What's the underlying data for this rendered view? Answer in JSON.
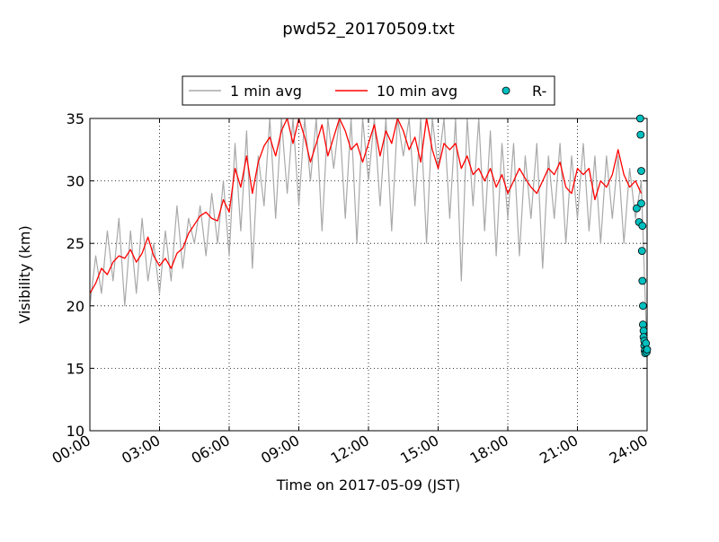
{
  "chart_data": {
    "type": "line",
    "title": "pwd52_20170509.txt",
    "xlabel": "Time on 2017-05-09 (JST)",
    "ylabel": "Visibility (km)",
    "xlim": [
      "00:00",
      "24:00"
    ],
    "ylim": [
      10,
      35
    ],
    "x_ticks": [
      "00:00",
      "03:00",
      "06:00",
      "09:00",
      "12:00",
      "15:00",
      "18:00",
      "21:00",
      "24:00"
    ],
    "y_ticks": [
      "10",
      "15",
      "20",
      "25",
      "30",
      "35"
    ],
    "grid": true,
    "legend_position": "top-center",
    "series": [
      {
        "name": "1 min avg",
        "color": "#a9a9a9",
        "style": "line",
        "x_hours": [
          0.0,
          0.25,
          0.5,
          0.75,
          1.0,
          1.25,
          1.5,
          1.75,
          2.0,
          2.25,
          2.5,
          2.75,
          3.0,
          3.25,
          3.5,
          3.75,
          4.0,
          4.25,
          4.5,
          4.75,
          5.0,
          5.25,
          5.5,
          5.75,
          6.0,
          6.25,
          6.5,
          6.75,
          7.0,
          7.25,
          7.5,
          7.75,
          8.0,
          8.25,
          8.5,
          8.75,
          9.0,
          9.25,
          9.5,
          9.75,
          10.0,
          10.25,
          10.5,
          10.75,
          11.0,
          11.25,
          11.5,
          11.75,
          12.0,
          12.25,
          12.5,
          12.75,
          13.0,
          13.25,
          13.5,
          13.75,
          14.0,
          14.25,
          14.5,
          14.75,
          15.0,
          15.25,
          15.5,
          15.75,
          16.0,
          16.25,
          16.5,
          16.75,
          17.0,
          17.25,
          17.5,
          17.75,
          18.0,
          18.25,
          18.5,
          18.75,
          19.0,
          19.25,
          19.5,
          19.75,
          20.0,
          20.25,
          20.5,
          20.75,
          21.0,
          21.25,
          21.5,
          21.75,
          22.0,
          22.25,
          22.5,
          22.75,
          23.0,
          23.25,
          23.5,
          23.75,
          24.0
        ],
        "values": [
          20,
          24,
          21,
          26,
          22,
          27,
          20,
          26,
          21,
          27,
          22,
          25,
          21,
          26,
          22,
          28,
          23,
          27,
          25,
          28,
          24,
          29,
          25,
          30,
          24,
          33,
          26,
          34,
          23,
          32,
          28,
          35,
          27,
          35,
          29,
          35,
          28,
          35,
          30,
          35,
          26,
          35,
          31,
          35,
          27,
          35,
          25,
          35,
          30,
          35,
          28,
          35,
          26,
          35,
          32,
          35,
          28,
          35,
          25,
          35,
          31,
          35,
          27,
          35,
          22,
          35,
          28,
          35,
          26,
          34,
          24,
          33,
          27,
          33,
          24,
          32,
          27,
          33,
          23,
          32,
          27,
          33,
          25,
          32,
          27,
          33,
          26,
          32,
          25,
          32,
          27,
          32,
          25,
          31,
          27,
          30,
          16
        ]
      },
      {
        "name": "10 min avg",
        "color": "#ff0000",
        "style": "line",
        "x_hours": [
          0.0,
          0.25,
          0.5,
          0.75,
          1.0,
          1.25,
          1.5,
          1.75,
          2.0,
          2.25,
          2.5,
          2.75,
          3.0,
          3.25,
          3.5,
          3.75,
          4.0,
          4.25,
          4.5,
          4.75,
          5.0,
          5.25,
          5.5,
          5.75,
          6.0,
          6.25,
          6.5,
          6.75,
          7.0,
          7.25,
          7.5,
          7.75,
          8.0,
          8.25,
          8.5,
          8.75,
          9.0,
          9.25,
          9.5,
          9.75,
          10.0,
          10.25,
          10.5,
          10.75,
          11.0,
          11.25,
          11.5,
          11.75,
          12.0,
          12.25,
          12.5,
          12.75,
          13.0,
          13.25,
          13.5,
          13.75,
          14.0,
          14.25,
          14.5,
          14.75,
          15.0,
          15.25,
          15.5,
          15.75,
          16.0,
          16.25,
          16.5,
          16.75,
          17.0,
          17.25,
          17.5,
          17.75,
          18.0,
          18.25,
          18.5,
          18.75,
          19.0,
          19.25,
          19.5,
          19.75,
          20.0,
          20.25,
          20.5,
          20.75,
          21.0,
          21.25,
          21.5,
          21.75,
          22.0,
          22.25,
          22.5,
          22.75,
          23.0,
          23.25,
          23.5,
          23.75
        ],
        "values": [
          21.0,
          21.8,
          23.0,
          22.5,
          23.5,
          24.0,
          23.8,
          24.5,
          23.5,
          24.2,
          25.5,
          24.0,
          23.2,
          23.8,
          23.0,
          24.2,
          24.6,
          25.8,
          26.5,
          27.2,
          27.5,
          27.0,
          26.8,
          28.5,
          27.5,
          31.0,
          29.5,
          32.0,
          29.0,
          31.5,
          32.8,
          33.5,
          32.0,
          34.0,
          35.0,
          33.0,
          35.0,
          33.5,
          31.5,
          33.0,
          34.5,
          32.0,
          33.5,
          35.0,
          34.0,
          32.5,
          33.0,
          31.5,
          33.0,
          34.5,
          32.0,
          34.0,
          33.0,
          35.0,
          34.0,
          32.5,
          33.5,
          31.5,
          35.0,
          32.5,
          31.0,
          33.0,
          32.5,
          33.0,
          31.0,
          32.0,
          30.5,
          31.0,
          30.0,
          31.0,
          29.5,
          30.5,
          29.0,
          30.0,
          31.0,
          30.2,
          29.5,
          29.0,
          30.0,
          31.0,
          30.5,
          31.5,
          29.5,
          29.0,
          31.0,
          30.5,
          31.0,
          28.5,
          30.0,
          29.5,
          30.5,
          32.5,
          30.5,
          29.5,
          30.0,
          29.0
        ]
      },
      {
        "name": "R-",
        "color": "#00bfbf",
        "style": "markers",
        "x_hours": [
          23.55,
          23.65,
          23.7,
          23.72,
          23.75,
          23.75,
          23.78,
          23.8,
          23.8,
          23.82,
          23.82,
          23.85,
          23.85,
          23.88,
          23.88,
          23.9,
          23.92,
          23.95,
          23.98,
          24.0
        ],
        "values": [
          27.8,
          26.7,
          35.0,
          33.7,
          30.8,
          28.2,
          24.4,
          26.4,
          22.0,
          20.0,
          18.5,
          18.0,
          17.5,
          17.2,
          16.8,
          16.4,
          16.2,
          17.0,
          16.3,
          16.5
        ]
      }
    ]
  }
}
